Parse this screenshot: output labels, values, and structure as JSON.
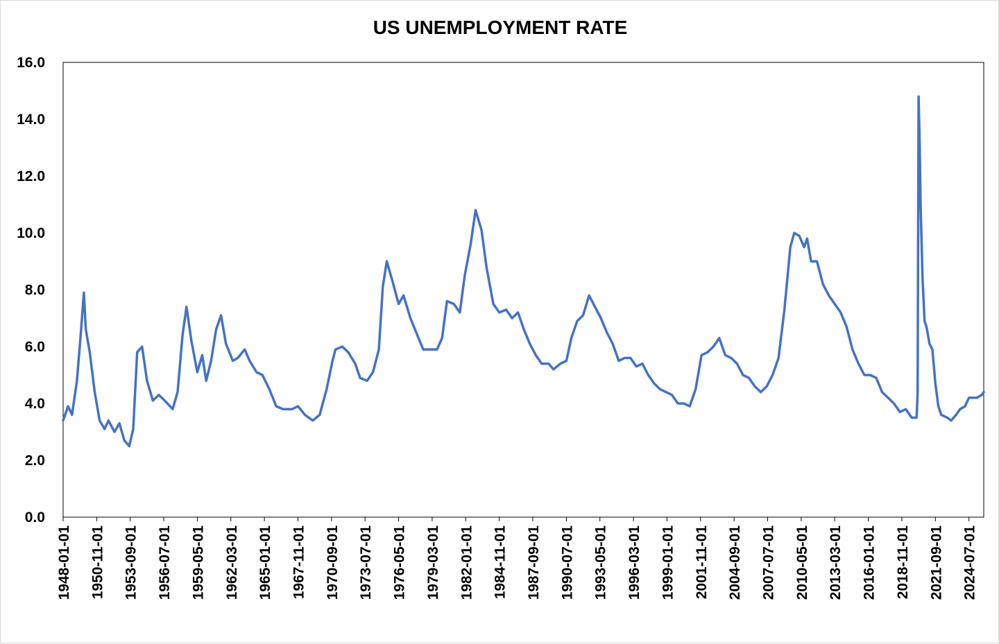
{
  "chart_data": {
    "type": "line",
    "title": "US UNEMPLOYMENT RATE",
    "xlabel": "",
    "ylabel": "",
    "ylim": [
      0,
      16
    ],
    "yticks": [
      "0.0",
      "2.0",
      "4.0",
      "6.0",
      "8.0",
      "10.0",
      "12.0",
      "14.0",
      "16.0"
    ],
    "xticks": [
      "1948-01-01",
      "1950-11-01",
      "1953-09-01",
      "1956-07-01",
      "1959-05-01",
      "1962-03-01",
      "1965-01-01",
      "1967-11-01",
      "1970-09-01",
      "1973-07-01",
      "1976-05-01",
      "1979-03-01",
      "1982-01-01",
      "1984-11-01",
      "1987-09-01",
      "1990-07-01",
      "1993-05-01",
      "1996-03-01",
      "1999-01-01",
      "2001-11-01",
      "2004-09-01",
      "2007-07-01",
      "2010-05-01",
      "2013-03-01",
      "2016-01-01",
      "2018-11-01",
      "2021-09-01",
      "2024-07-01"
    ],
    "x_range": [
      "1948-01-01",
      "2025-10-01"
    ],
    "line_color": "#4472C4",
    "grid": false,
    "legend": "none",
    "series": [
      {
        "points": [
          [
            "1948-01-01",
            3.4
          ],
          [
            "1948-06-01",
            3.9
          ],
          [
            "1948-10-01",
            3.6
          ],
          [
            "1949-03-01",
            4.8
          ],
          [
            "1949-07-01",
            6.5
          ],
          [
            "1949-10-01",
            7.9
          ],
          [
            "1949-12-01",
            6.6
          ],
          [
            "1950-04-01",
            5.8
          ],
          [
            "1950-09-01",
            4.4
          ],
          [
            "1951-02-01",
            3.4
          ],
          [
            "1951-07-01",
            3.1
          ],
          [
            "1951-11-01",
            3.4
          ],
          [
            "1952-05-01",
            3.0
          ],
          [
            "1952-10-01",
            3.3
          ],
          [
            "1953-03-01",
            2.7
          ],
          [
            "1953-08-01",
            2.5
          ],
          [
            "1953-12-01",
            3.1
          ],
          [
            "1954-04-01",
            5.8
          ],
          [
            "1954-09-01",
            6.0
          ],
          [
            "1955-02-01",
            4.8
          ],
          [
            "1955-08-01",
            4.1
          ],
          [
            "1956-02-01",
            4.3
          ],
          [
            "1956-08-01",
            4.1
          ],
          [
            "1957-04-01",
            3.8
          ],
          [
            "1957-09-01",
            4.4
          ],
          [
            "1958-02-01",
            6.4
          ],
          [
            "1958-06-01",
            7.4
          ],
          [
            "1958-11-01",
            6.2
          ],
          [
            "1959-05-01",
            5.1
          ],
          [
            "1959-10-01",
            5.7
          ],
          [
            "1960-02-01",
            4.8
          ],
          [
            "1960-07-01",
            5.5
          ],
          [
            "1960-12-01",
            6.6
          ],
          [
            "1961-05-01",
            7.1
          ],
          [
            "1961-10-01",
            6.1
          ],
          [
            "1962-05-01",
            5.5
          ],
          [
            "1962-10-01",
            5.6
          ],
          [
            "1963-05-01",
            5.9
          ],
          [
            "1963-10-01",
            5.5
          ],
          [
            "1964-05-01",
            5.1
          ],
          [
            "1964-11-01",
            5.0
          ],
          [
            "1965-06-01",
            4.5
          ],
          [
            "1966-01-01",
            3.9
          ],
          [
            "1966-08-01",
            3.8
          ],
          [
            "1967-05-01",
            3.8
          ],
          [
            "1967-11-01",
            3.9
          ],
          [
            "1968-06-01",
            3.6
          ],
          [
            "1969-02-01",
            3.4
          ],
          [
            "1969-09-01",
            3.6
          ],
          [
            "1970-04-01",
            4.5
          ],
          [
            "1970-10-01",
            5.5
          ],
          [
            "1971-01-01",
            5.9
          ],
          [
            "1971-08-01",
            6.0
          ],
          [
            "1972-02-01",
            5.8
          ],
          [
            "1972-09-01",
            5.4
          ],
          [
            "1973-02-01",
            4.9
          ],
          [
            "1973-09-01",
            4.8
          ],
          [
            "1974-03-01",
            5.1
          ],
          [
            "1974-09-01",
            5.9
          ],
          [
            "1975-01-01",
            8.1
          ],
          [
            "1975-05-01",
            9.0
          ],
          [
            "1975-10-01",
            8.4
          ],
          [
            "1976-05-01",
            7.5
          ],
          [
            "1976-10-01",
            7.8
          ],
          [
            "1977-05-01",
            7.0
          ],
          [
            "1977-12-01",
            6.4
          ],
          [
            "1978-06-01",
            5.9
          ],
          [
            "1979-01-01",
            5.9
          ],
          [
            "1979-08-01",
            5.9
          ],
          [
            "1980-01-01",
            6.3
          ],
          [
            "1980-06-01",
            7.6
          ],
          [
            "1981-01-01",
            7.5
          ],
          [
            "1981-07-01",
            7.2
          ],
          [
            "1981-12-01",
            8.5
          ],
          [
            "1982-06-01",
            9.6
          ],
          [
            "1982-11-01",
            10.8
          ],
          [
            "1983-05-01",
            10.1
          ],
          [
            "1983-10-01",
            8.8
          ],
          [
            "1984-05-01",
            7.5
          ],
          [
            "1984-11-01",
            7.2
          ],
          [
            "1985-06-01",
            7.3
          ],
          [
            "1985-12-01",
            7.0
          ],
          [
            "1986-06-01",
            7.2
          ],
          [
            "1986-12-01",
            6.6
          ],
          [
            "1987-06-01",
            6.1
          ],
          [
            "1987-12-01",
            5.7
          ],
          [
            "1988-06-01",
            5.4
          ],
          [
            "1989-01-01",
            5.4
          ],
          [
            "1989-06-01",
            5.2
          ],
          [
            "1990-01-01",
            5.4
          ],
          [
            "1990-07-01",
            5.5
          ],
          [
            "1990-12-01",
            6.3
          ],
          [
            "1991-06-01",
            6.9
          ],
          [
            "1991-12-01",
            7.1
          ],
          [
            "1992-06-01",
            7.8
          ],
          [
            "1992-12-01",
            7.4
          ],
          [
            "1993-06-01",
            7.0
          ],
          [
            "1993-12-01",
            6.5
          ],
          [
            "1994-06-01",
            6.1
          ],
          [
            "1994-12-01",
            5.5
          ],
          [
            "1995-06-01",
            5.6
          ],
          [
            "1995-12-01",
            5.6
          ],
          [
            "1996-06-01",
            5.3
          ],
          [
            "1996-12-01",
            5.4
          ],
          [
            "1997-06-01",
            5.0
          ],
          [
            "1997-12-01",
            4.7
          ],
          [
            "1998-06-01",
            4.5
          ],
          [
            "1998-12-01",
            4.4
          ],
          [
            "1999-06-01",
            4.3
          ],
          [
            "1999-12-01",
            4.0
          ],
          [
            "2000-06-01",
            4.0
          ],
          [
            "2000-12-01",
            3.9
          ],
          [
            "2001-06-01",
            4.5
          ],
          [
            "2001-12-01",
            5.7
          ],
          [
            "2002-06-01",
            5.8
          ],
          [
            "2002-12-01",
            6.0
          ],
          [
            "2003-06-01",
            6.3
          ],
          [
            "2003-12-01",
            5.7
          ],
          [
            "2004-06-01",
            5.6
          ],
          [
            "2004-12-01",
            5.4
          ],
          [
            "2005-06-01",
            5.0
          ],
          [
            "2005-12-01",
            4.9
          ],
          [
            "2006-06-01",
            4.6
          ],
          [
            "2006-12-01",
            4.4
          ],
          [
            "2007-06-01",
            4.6
          ],
          [
            "2007-12-01",
            5.0
          ],
          [
            "2008-06-01",
            5.6
          ],
          [
            "2008-12-01",
            7.3
          ],
          [
            "2009-06-01",
            9.5
          ],
          [
            "2009-10-01",
            10.0
          ],
          [
            "2010-03-01",
            9.9
          ],
          [
            "2010-08-01",
            9.5
          ],
          [
            "2010-11-01",
            9.8
          ],
          [
            "2011-03-01",
            9.0
          ],
          [
            "2011-09-01",
            9.0
          ],
          [
            "2012-03-01",
            8.2
          ],
          [
            "2012-09-01",
            7.8
          ],
          [
            "2013-03-01",
            7.5
          ],
          [
            "2013-09-01",
            7.2
          ],
          [
            "2014-03-01",
            6.7
          ],
          [
            "2014-09-01",
            5.9
          ],
          [
            "2015-03-01",
            5.4
          ],
          [
            "2015-09-01",
            5.0
          ],
          [
            "2016-03-01",
            5.0
          ],
          [
            "2016-09-01",
            4.9
          ],
          [
            "2017-03-01",
            4.4
          ],
          [
            "2017-09-01",
            4.2
          ],
          [
            "2018-03-01",
            4.0
          ],
          [
            "2018-09-01",
            3.7
          ],
          [
            "2019-03-01",
            3.8
          ],
          [
            "2019-09-01",
            3.5
          ],
          [
            "2020-02-01",
            3.5
          ],
          [
            "2020-03-01",
            4.4
          ],
          [
            "2020-04-01",
            14.8
          ],
          [
            "2020-05-01",
            13.2
          ],
          [
            "2020-06-01",
            11.0
          ],
          [
            "2020-08-01",
            8.4
          ],
          [
            "2020-10-01",
            6.9
          ],
          [
            "2020-12-01",
            6.7
          ],
          [
            "2021-03-01",
            6.1
          ],
          [
            "2021-06-01",
            5.9
          ],
          [
            "2021-09-01",
            4.7
          ],
          [
            "2021-12-01",
            3.9
          ],
          [
            "2022-03-01",
            3.6
          ],
          [
            "2022-09-01",
            3.5
          ],
          [
            "2023-01-01",
            3.4
          ],
          [
            "2023-06-01",
            3.6
          ],
          [
            "2023-10-01",
            3.8
          ],
          [
            "2024-03-01",
            3.9
          ],
          [
            "2024-07-01",
            4.2
          ],
          [
            "2024-11-01",
            4.2
          ],
          [
            "2025-03-01",
            4.2
          ],
          [
            "2025-08-01",
            4.3
          ],
          [
            "2025-10-01",
            4.4
          ]
        ]
      }
    ]
  }
}
